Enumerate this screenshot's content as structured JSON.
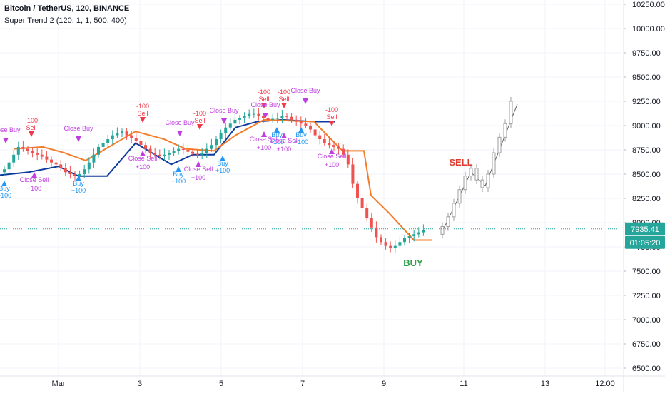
{
  "header": {
    "title": "Bitcoin / TetherUS, 120, BINANCE",
    "indicator": "Super Trend 2 (120, 1, 1, 500, 400)"
  },
  "price_axis": {
    "labels": [
      "10250.00",
      "10000.00",
      "9750.00",
      "9500.00",
      "9250.00",
      "9000.00",
      "8750.00",
      "8500.00",
      "8250.00",
      "8000.00",
      "7750.00",
      "7500.00",
      "7250.00",
      "7000.00",
      "6750.00",
      "6500.00"
    ],
    "values": [
      10250,
      10000,
      9750,
      9500,
      9250,
      9000,
      8750,
      8500,
      8250,
      8000,
      7750,
      7500,
      7250,
      7000,
      6750,
      6500
    ],
    "current_price": "7935.41",
    "countdown": "01:05:20"
  },
  "time_axis": {
    "labels": [
      "Mar",
      "3",
      "5",
      "7",
      "9",
      "11",
      "13",
      "12:00"
    ]
  },
  "colors": {
    "up": "#26a69a",
    "down": "#ef5350",
    "trend_up": "#0d3a9e",
    "trend_down": "#f57c28",
    "buy_marker": "#2196f3",
    "sell_marker": "#f23645",
    "close_marker": "#c03ee0",
    "buy_text": "#2e9e48",
    "sell_text": "#e0392e",
    "projection": "#9e9e9e"
  },
  "signals": {
    "sell": "Sell",
    "buy": "Buy",
    "close_buy": "Close Buy",
    "close_sell": "Close Sell",
    "plus100": "+100",
    "minus100": "-100"
  },
  "annotations": {
    "sell": "SELL",
    "buy": "BUY"
  },
  "chart_data": {
    "type": "candlestick",
    "ylim": [
      6450,
      10350
    ],
    "trend_down_points": [
      [
        8780,
        8780
      ],
      [
        8720,
        8720
      ],
      [
        8700,
        8700
      ],
      [
        8640,
        8640
      ],
      [
        8640,
        8640
      ],
      [
        8880,
        8880
      ],
      [
        8940,
        8940
      ],
      [
        8900,
        8900
      ],
      [
        8860,
        8860
      ],
      [
        8760,
        8760
      ],
      [
        8760,
        8760
      ],
      [
        8740,
        8740
      ],
      [
        8640,
        8640
      ],
      [
        8640,
        8640
      ],
      [
        8640,
        8640
      ],
      [
        8640,
        8640
      ],
      [
        8960,
        8960
      ],
      [
        8940,
        8940
      ],
      [
        8900,
        8900
      ],
      [
        8880,
        8880
      ],
      [
        8760,
        8760
      ],
      [
        8760,
        8760
      ],
      [
        8740,
        8740
      ],
      [
        8740,
        8740
      ],
      [
        8280,
        8280
      ],
      [
        8100,
        8100
      ],
      [
        7980,
        7980
      ],
      [
        7840,
        7840
      ],
      [
        7840,
        7840
      ],
      [
        7820,
        7820
      ],
      [
        7820,
        7820
      ]
    ]
  }
}
